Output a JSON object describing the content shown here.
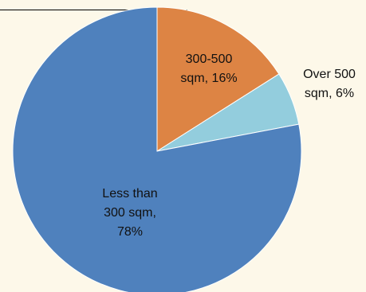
{
  "chart_data": {
    "type": "pie",
    "title": "",
    "colors": {
      "less_than_300": "#4f81bd",
      "300_500": "#dd8444",
      "over_500": "#93cddd",
      "background": "#fdf8e9"
    },
    "slices": [
      {
        "key": "less_than_300",
        "category": "Less than 300 sqm",
        "value": 78,
        "label_lines": [
          "Less than",
          "300 sqm,",
          "78%"
        ]
      },
      {
        "key": "300_500",
        "category": "300-500 sqm",
        "value": 16,
        "label_lines": [
          "300-500",
          "sqm, 16%"
        ]
      },
      {
        "key": "over_500",
        "category": "Over 500 sqm",
        "value": 6,
        "label_lines": [
          "Over 500",
          "sqm, 6%"
        ]
      }
    ]
  }
}
